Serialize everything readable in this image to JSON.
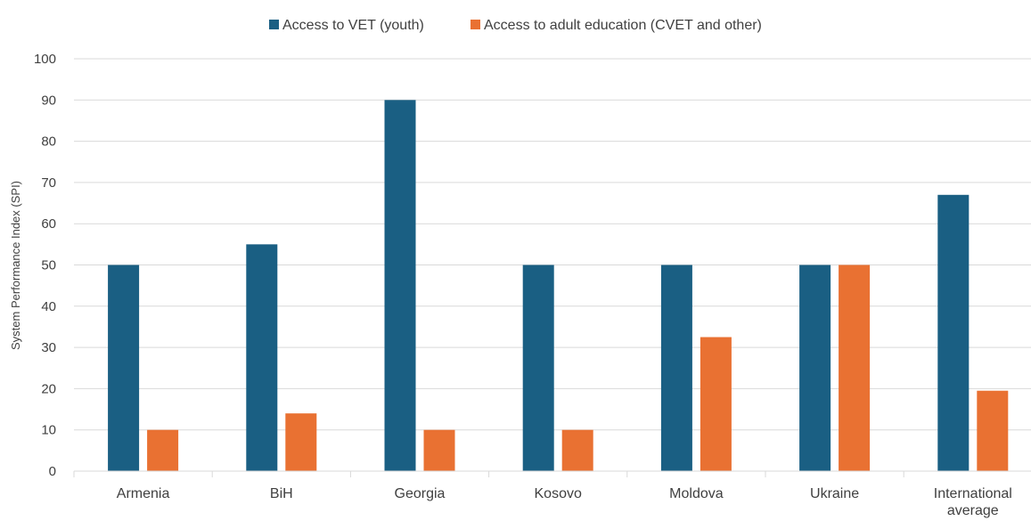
{
  "chart_data": {
    "type": "bar",
    "title": "",
    "xlabel": "",
    "ylabel": "System Performance Index (SPI)",
    "ylim": [
      0,
      100
    ],
    "yticks": [
      0,
      10,
      20,
      30,
      40,
      50,
      60,
      70,
      80,
      90,
      100
    ],
    "grid": true,
    "legend_position": "top-center",
    "categories": [
      "Armenia",
      "BiH",
      "Georgia",
      "Kosovo",
      "Moldova",
      "Ukraine",
      "International average"
    ],
    "series": [
      {
        "name": "Access to VET (youth)",
        "color": "#1a5f83",
        "values": [
          50,
          55,
          90,
          50,
          50,
          50,
          67
        ]
      },
      {
        "name": "Access to adult education (CVET and other)",
        "color": "#e97132",
        "values": [
          10,
          14,
          10,
          10,
          32.5,
          50,
          19.5
        ]
      }
    ]
  }
}
